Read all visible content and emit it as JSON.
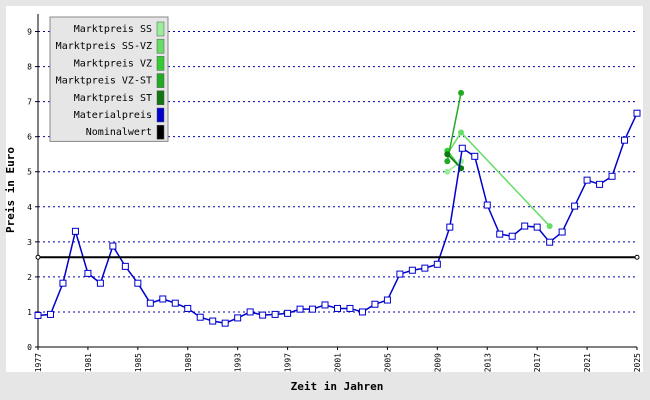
{
  "chart_data": {
    "type": "line",
    "x_label": "Zeit in Jahren",
    "y_label": "Preis in Euro",
    "xlim": [
      1977,
      2025
    ],
    "xticks": [
      1977,
      1981,
      1985,
      1989,
      1993,
      1997,
      2001,
      2005,
      2009,
      2013,
      2017,
      2021,
      2025
    ],
    "ylim": [
      0,
      9.5
    ],
    "yticks": [
      0,
      1,
      2,
      3,
      4,
      5,
      6,
      7,
      8,
      9
    ],
    "grid": true,
    "legend": "top-left",
    "series": [
      {
        "name": "Marktpreis SS",
        "color": "#99ee99",
        "x": [
          2009.8,
          2010.9
        ],
        "values": [
          5.0,
          5.3
        ]
      },
      {
        "name": "Marktpreis SS-VZ",
        "color": "#66dd66",
        "x": [
          2009.8,
          2010.9,
          2018
        ],
        "values": [
          5.5,
          6.12,
          3.45
        ]
      },
      {
        "name": "Marktpreis VZ",
        "color": "#33cc33",
        "x": [
          2009.8,
          2010.9
        ],
        "values": [
          5.6,
          5.1
        ]
      },
      {
        "name": "Marktpreis VZ-ST",
        "color": "#22aa22",
        "x": [
          2009.8,
          2010.9
        ],
        "values": [
          5.3,
          7.25
        ]
      },
      {
        "name": "Marktpreis ST",
        "color": "#117711",
        "x": [
          2009.8,
          2010.9
        ],
        "values": [
          5.5,
          5.1
        ]
      },
      {
        "name": "Materialpreis",
        "color": "#0000cc",
        "x": [
          1977,
          1978,
          1979,
          1980,
          1981,
          1982,
          1983,
          1984,
          1985,
          1986,
          1987,
          1988,
          1989,
          1990,
          1991,
          1992,
          1993,
          1994,
          1995,
          1996,
          1997,
          1998,
          1999,
          2000,
          2001,
          2002,
          2003,
          2004,
          2005,
          2006,
          2007,
          2008,
          2009,
          2010,
          2011,
          2012,
          2013,
          2014,
          2015,
          2016,
          2017,
          2018,
          2019,
          2020,
          2021,
          2022,
          2023,
          2024,
          2025
        ],
        "values": [
          0.9,
          0.93,
          1.82,
          3.3,
          2.1,
          1.82,
          2.88,
          2.3,
          1.82,
          1.25,
          1.37,
          1.25,
          1.1,
          0.85,
          0.74,
          0.68,
          0.83,
          1.0,
          0.91,
          0.93,
          0.96,
          1.08,
          1.08,
          1.2,
          1.1,
          1.1,
          1.0,
          1.22,
          1.34,
          2.08,
          2.19,
          2.25,
          2.36,
          3.42,
          5.67,
          5.44,
          4.05,
          3.22,
          3.16,
          3.45,
          3.42,
          2.99,
          3.28,
          4.02,
          4.76,
          4.64,
          4.87,
          5.9,
          6.67
        ]
      },
      {
        "name": "Nominalwert",
        "color": "#000000",
        "x": [
          1977,
          2025
        ],
        "values": [
          2.56,
          2.56
        ]
      }
    ]
  }
}
